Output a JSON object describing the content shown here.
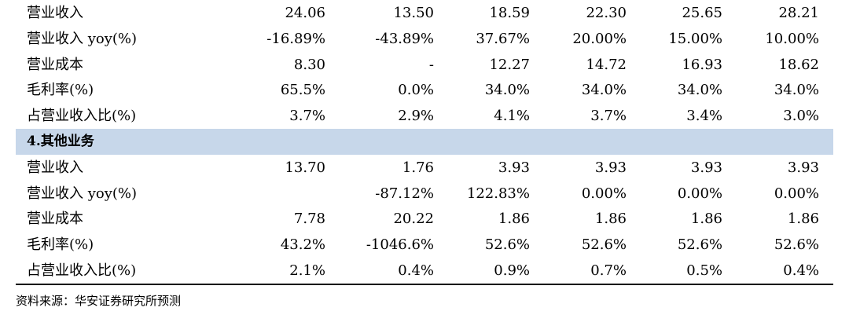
{
  "rows": [
    {
      "type": "data",
      "label": "营业收入",
      "values": [
        "24.06",
        "13.50",
        "18.59",
        "22.30",
        "25.65",
        "28.21"
      ]
    },
    {
      "type": "data",
      "label": "营业收入 yoy(%)",
      "values": [
        "-16.89%",
        "-43.89%",
        "37.67%",
        "20.00%",
        "15.00%",
        "10.00%"
      ]
    },
    {
      "type": "data",
      "label": "营业成本",
      "values": [
        "8.30",
        "-",
        "12.27",
        "14.72",
        "16.93",
        "18.62"
      ]
    },
    {
      "type": "data",
      "label": "毛利率(%)",
      "values": [
        "65.5%",
        "0.0%",
        "34.0%",
        "34.0%",
        "34.0%",
        "34.0%"
      ]
    },
    {
      "type": "data",
      "label": "占营业收入比(%)",
      "values": [
        "3.7%",
        "2.9%",
        "4.1%",
        "3.7%",
        "3.4%",
        "3.0%"
      ]
    },
    {
      "type": "section",
      "label": "4.其他业务",
      "values": [
        "",
        "",
        "",
        "",
        "",
        ""
      ]
    },
    {
      "type": "data",
      "label": "营业收入",
      "values": [
        "13.70",
        "1.76",
        "3.93",
        "3.93",
        "3.93",
        "3.93"
      ]
    },
    {
      "type": "data",
      "label": "营业收入 yoy(%)",
      "values": [
        "",
        "-87.12%",
        "122.83%",
        "0.00%",
        "0.00%",
        "0.00%"
      ]
    },
    {
      "type": "data",
      "label": "营业成本",
      "values": [
        "7.78",
        "20.22",
        "1.86",
        "1.86",
        "1.86",
        "1.86"
      ]
    },
    {
      "type": "data",
      "label": "毛利率(%)",
      "values": [
        "43.2%",
        "-1046.6%",
        "52.6%",
        "52.6%",
        "52.6%",
        "52.6%"
      ]
    },
    {
      "type": "data",
      "label": "占营业收入比(%)",
      "values": [
        "2.1%",
        "0.4%",
        "0.9%",
        "0.7%",
        "0.5%",
        "0.4%"
      ]
    }
  ],
  "source": "资料来源：华安证券研究所预测"
}
